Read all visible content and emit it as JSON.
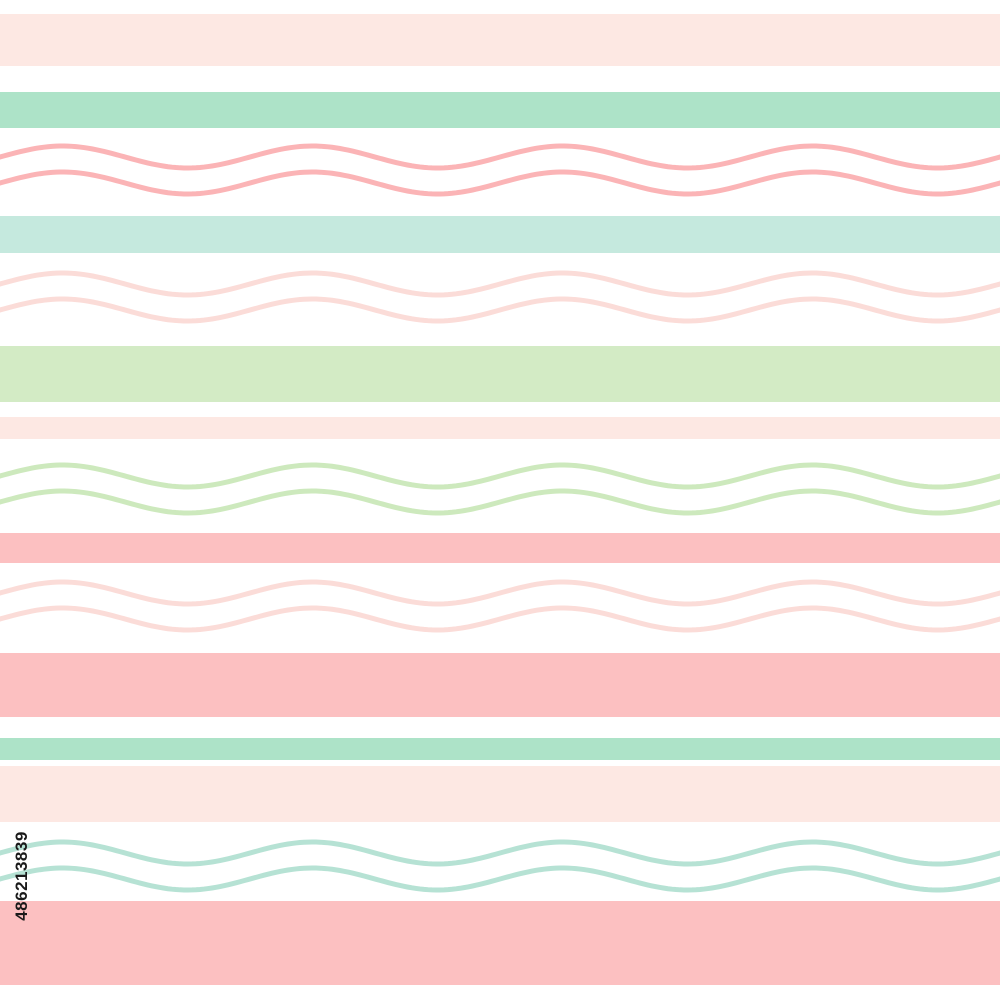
{
  "artwork": {
    "description_kind": "seamless pastel stripe pattern with double wavy lines",
    "palette": {
      "background": "#ffffff",
      "peach": "#fde8e3",
      "mint": "#ade3c8",
      "pale_mint": "#c5e9de",
      "light_green": "#d3ebc5",
      "pink": "#fcc0c1",
      "wave_pink": "#fbb4b6",
      "wave_pale_pink": "#fbd9d6",
      "wave_green": "#cde9bd",
      "wave_mint": "#b6e2d4"
    },
    "stripes": [
      {
        "name": "stripe-peach-top",
        "color": "#fde8e3"
      },
      {
        "name": "stripe-mint-1",
        "color": "#ade3c8"
      },
      {
        "name": "stripe-pale-mint",
        "color": "#c5e9de"
      },
      {
        "name": "stripe-light-green",
        "color": "#d3ebc5"
      },
      {
        "name": "stripe-peach-thin",
        "color": "#fde8e3"
      },
      {
        "name": "stripe-pink-1",
        "color": "#fcc0c1"
      },
      {
        "name": "stripe-pink-wide",
        "color": "#fcc0c1"
      },
      {
        "name": "stripe-mint-2",
        "color": "#ade3c8"
      },
      {
        "name": "stripe-peach-lower",
        "color": "#fde8e3"
      },
      {
        "name": "stripe-pink-bottom",
        "color": "#fcc0c1"
      }
    ],
    "wave_groups": [
      {
        "name": "wave-group-pink",
        "color": "#fbb4b6"
      },
      {
        "name": "wave-group-pale-pink-1",
        "color": "#fbdcd8"
      },
      {
        "name": "wave-group-green",
        "color": "#cde9bd"
      },
      {
        "name": "wave-group-pale-pink-2",
        "color": "#fbdcd8"
      },
      {
        "name": "wave-group-mint",
        "color": "#b6e2d4"
      }
    ]
  },
  "overlay": {
    "stock_id": "486213839"
  }
}
